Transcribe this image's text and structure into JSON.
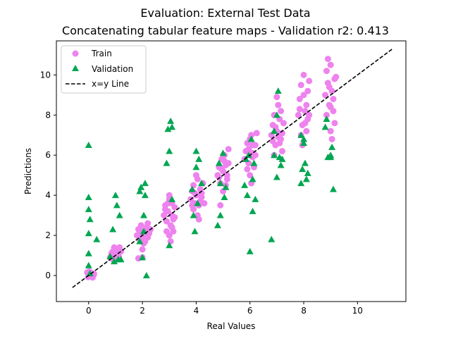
{
  "chart_data": {
    "type": "scatter",
    "title": "Evaluation: External Test Data",
    "subtitle": "Concatenating tabular feature maps - Validation r2: 0.413",
    "xlabel": "Real Values",
    "ylabel": "Predictions",
    "xlim": [
      -1.2,
      11.8
    ],
    "ylim": [
      -1.3,
      11.7
    ],
    "xticks": [
      0,
      2,
      4,
      6,
      8,
      10
    ],
    "yticks": [
      0,
      2,
      4,
      6,
      8,
      10
    ],
    "grid": false,
    "legend_position": "top-left",
    "series": [
      {
        "name": "Train",
        "marker": "circle",
        "color": "#ee82ee",
        "points": [
          [
            0.0,
            0.0
          ],
          [
            0.05,
            0.1
          ],
          [
            0.1,
            -0.05
          ],
          [
            -0.05,
            0.15
          ],
          [
            0.02,
            0.2
          ],
          [
            0.08,
            0.05
          ],
          [
            0.12,
            0.12
          ],
          [
            0.15,
            -0.1
          ],
          [
            0.18,
            0.0
          ],
          [
            0.2,
            0.08
          ],
          [
            -0.02,
            -0.08
          ],
          [
            0.03,
            0.05
          ],
          [
            0.8,
            0.9
          ],
          [
            0.85,
            1.1
          ],
          [
            0.9,
            1.2
          ],
          [
            0.95,
            1.0
          ],
          [
            1.0,
            1.3
          ],
          [
            1.05,
            1.1
          ],
          [
            0.9,
            0.8
          ],
          [
            1.0,
            0.9
          ],
          [
            1.1,
            1.0
          ],
          [
            1.15,
            1.4
          ],
          [
            1.2,
            1.2
          ],
          [
            0.95,
            1.4
          ],
          [
            1.05,
            0.8
          ],
          [
            0.88,
            1.15
          ],
          [
            1.12,
            0.95
          ],
          [
            1.8,
            2.0
          ],
          [
            1.85,
            2.3
          ],
          [
            1.9,
            1.8
          ],
          [
            1.95,
            2.5
          ],
          [
            2.0,
            2.2
          ],
          [
            2.05,
            2.0
          ],
          [
            2.1,
            1.7
          ],
          [
            2.15,
            2.4
          ],
          [
            2.2,
            2.6
          ],
          [
            2.25,
            2.1
          ],
          [
            2.0,
            1.3
          ],
          [
            2.05,
            1.6
          ],
          [
            1.9,
            2.1
          ],
          [
            2.1,
            2.2
          ],
          [
            1.95,
            1.9
          ],
          [
            2.2,
            1.9
          ],
          [
            2.3,
            2.3
          ],
          [
            2.0,
            0.9
          ],
          [
            1.85,
            0.85
          ],
          [
            2.8,
            3.0
          ],
          [
            2.85,
            3.5
          ],
          [
            2.9,
            2.7
          ],
          [
            2.95,
            3.2
          ],
          [
            3.0,
            3.8
          ],
          [
            3.05,
            2.5
          ],
          [
            3.1,
            3.0
          ],
          [
            3.15,
            2.8
          ],
          [
            3.2,
            3.4
          ],
          [
            2.9,
            2.2
          ],
          [
            3.0,
            2.0
          ],
          [
            3.05,
            1.7
          ],
          [
            3.1,
            2.4
          ],
          [
            2.95,
            3.6
          ],
          [
            3.0,
            4.0
          ],
          [
            3.1,
            3.6
          ],
          [
            2.85,
            3.3
          ],
          [
            3.2,
            2.9
          ],
          [
            3.15,
            2.2
          ],
          [
            3.8,
            3.8
          ],
          [
            3.85,
            4.2
          ],
          [
            3.9,
            4.5
          ],
          [
            3.95,
            3.6
          ],
          [
            4.0,
            4.0
          ],
          [
            4.05,
            3.0
          ],
          [
            4.1,
            2.8
          ],
          [
            4.15,
            4.3
          ],
          [
            4.2,
            3.9
          ],
          [
            4.25,
            4.6
          ],
          [
            4.0,
            5.0
          ],
          [
            4.05,
            4.8
          ],
          [
            3.9,
            3.3
          ],
          [
            4.1,
            3.5
          ],
          [
            3.95,
            4.1
          ],
          [
            4.15,
            3.7
          ],
          [
            4.2,
            4.1
          ],
          [
            4.3,
            3.6
          ],
          [
            3.85,
            3.5
          ],
          [
            4.8,
            5.0
          ],
          [
            4.85,
            5.4
          ],
          [
            4.9,
            4.6
          ],
          [
            4.95,
            5.8
          ],
          [
            5.0,
            5.2
          ],
          [
            5.05,
            6.0
          ],
          [
            5.1,
            5.5
          ],
          [
            5.15,
            4.8
          ],
          [
            5.2,
            6.3
          ],
          [
            4.9,
            3.5
          ],
          [
            5.0,
            4.2
          ],
          [
            5.1,
            4.5
          ],
          [
            5.15,
            5.0
          ],
          [
            4.95,
            5.3
          ],
          [
            5.05,
            5.7
          ],
          [
            5.2,
            5.6
          ],
          [
            4.85,
            4.9
          ],
          [
            5.8,
            5.8
          ],
          [
            5.85,
            6.2
          ],
          [
            5.9,
            6.6
          ],
          [
            5.95,
            5.6
          ],
          [
            6.0,
            5.0
          ],
          [
            6.05,
            7.0
          ],
          [
            6.1,
            6.5
          ],
          [
            6.15,
            5.4
          ],
          [
            6.2,
            6.0
          ],
          [
            6.25,
            7.1
          ],
          [
            6.0,
            6.8
          ],
          [
            6.1,
            5.9
          ],
          [
            5.95,
            6.3
          ],
          [
            6.05,
            4.6
          ],
          [
            6.2,
            6.5
          ],
          [
            5.9,
            5.3
          ],
          [
            6.1,
            6.1
          ],
          [
            6.8,
            7.0
          ],
          [
            6.85,
            7.5
          ],
          [
            6.9,
            8.0
          ],
          [
            6.95,
            6.5
          ],
          [
            7.0,
            7.2
          ],
          [
            7.05,
            8.5
          ],
          [
            7.1,
            7.8
          ],
          [
            7.15,
            6.8
          ],
          [
            7.2,
            6.2
          ],
          [
            7.25,
            7.6
          ],
          [
            6.9,
            6.0
          ],
          [
            7.0,
            8.9
          ],
          [
            7.1,
            6.6
          ],
          [
            6.95,
            7.4
          ],
          [
            7.05,
            6.9
          ],
          [
            7.2,
            7.1
          ],
          [
            6.85,
            6.7
          ],
          [
            7.15,
            8.2
          ],
          [
            7.8,
            8.0
          ],
          [
            7.85,
            8.8
          ],
          [
            7.9,
            9.5
          ],
          [
            7.95,
            7.5
          ],
          [
            8.0,
            9.0
          ],
          [
            8.05,
            8.2
          ],
          [
            8.1,
            8.5
          ],
          [
            8.15,
            7.8
          ],
          [
            8.2,
            9.7
          ],
          [
            7.9,
            7.0
          ],
          [
            8.0,
            10.0
          ],
          [
            8.1,
            7.2
          ],
          [
            7.95,
            6.5
          ],
          [
            8.05,
            7.6
          ],
          [
            8.15,
            9.2
          ],
          [
            7.85,
            8.3
          ],
          [
            8.2,
            8.0
          ],
          [
            8.8,
            9.0
          ],
          [
            8.85,
            10.2
          ],
          [
            8.9,
            9.6
          ],
          [
            8.95,
            8.5
          ],
          [
            9.0,
            10.5
          ],
          [
            9.05,
            9.2
          ],
          [
            9.1,
            8.2
          ],
          [
            9.15,
            7.6
          ],
          [
            9.2,
            9.9
          ],
          [
            8.9,
            10.8
          ],
          [
            9.0,
            7.2
          ],
          [
            9.1,
            8.8
          ],
          [
            8.95,
            9.4
          ],
          [
            9.05,
            6.8
          ],
          [
            9.15,
            9.8
          ],
          [
            8.85,
            8.0
          ],
          [
            9.0,
            8.4
          ]
        ]
      },
      {
        "name": "Validation",
        "marker": "triangle",
        "color": "#00a651",
        "points": [
          [
            0.0,
            6.5
          ],
          [
            0.0,
            3.9
          ],
          [
            0.0,
            3.3
          ],
          [
            0.05,
            2.8
          ],
          [
            0.0,
            2.1
          ],
          [
            0.0,
            1.1
          ],
          [
            0.0,
            0.5
          ],
          [
            0.05,
            0.1
          ],
          [
            0.3,
            1.8
          ],
          [
            0.8,
            0.95
          ],
          [
            0.9,
            2.3
          ],
          [
            0.95,
            0.7
          ],
          [
            1.0,
            4.0
          ],
          [
            1.05,
            3.5
          ],
          [
            1.1,
            0.8
          ],
          [
            1.2,
            0.8
          ],
          [
            1.15,
            3.0
          ],
          [
            1.9,
            1.7
          ],
          [
            1.9,
            4.2
          ],
          [
            1.95,
            4.4
          ],
          [
            2.0,
            0.9
          ],
          [
            2.05,
            2.2
          ],
          [
            2.05,
            3.0
          ],
          [
            2.1,
            4.6
          ],
          [
            2.1,
            4.0
          ],
          [
            2.15,
            0.0
          ],
          [
            2.9,
            5.6
          ],
          [
            2.95,
            7.3
          ],
          [
            3.0,
            6.2
          ],
          [
            3.05,
            7.7
          ],
          [
            3.1,
            7.4
          ],
          [
            3.1,
            3.8
          ],
          [
            3.0,
            1.5
          ],
          [
            3.85,
            4.3
          ],
          [
            3.9,
            3.0
          ],
          [
            3.95,
            2.2
          ],
          [
            4.0,
            5.4
          ],
          [
            4.0,
            6.2
          ],
          [
            4.05,
            3.6
          ],
          [
            4.1,
            5.8
          ],
          [
            4.2,
            4.6
          ],
          [
            4.8,
            2.5
          ],
          [
            4.85,
            5.6
          ],
          [
            4.9,
            3.0
          ],
          [
            4.9,
            4.6
          ],
          [
            5.0,
            6.1
          ],
          [
            5.05,
            3.9
          ],
          [
            5.1,
            4.4
          ],
          [
            5.8,
            4.5
          ],
          [
            5.85,
            5.8
          ],
          [
            5.9,
            4.0
          ],
          [
            5.95,
            6.0
          ],
          [
            6.0,
            1.2
          ],
          [
            6.05,
            6.8
          ],
          [
            6.1,
            3.2
          ],
          [
            6.15,
            5.6
          ],
          [
            6.2,
            3.8
          ],
          [
            6.1,
            4.8
          ],
          [
            6.8,
            1.8
          ],
          [
            6.9,
            6.0
          ],
          [
            7.0,
            4.9
          ],
          [
            7.0,
            8.0
          ],
          [
            7.05,
            9.2
          ],
          [
            7.1,
            5.9
          ],
          [
            7.15,
            5.5
          ],
          [
            7.2,
            5.8
          ],
          [
            6.9,
            7.2
          ],
          [
            7.9,
            4.6
          ],
          [
            7.95,
            5.3
          ],
          [
            8.0,
            6.8
          ],
          [
            8.05,
            5.6
          ],
          [
            8.1,
            4.8
          ],
          [
            8.15,
            5.1
          ],
          [
            7.9,
            7.0
          ],
          [
            8.0,
            6.6
          ],
          [
            8.8,
            7.4
          ],
          [
            8.85,
            7.8
          ],
          [
            8.9,
            5.9
          ],
          [
            9.0,
            5.9
          ],
          [
            9.05,
            6.4
          ],
          [
            9.1,
            4.3
          ],
          [
            9.0,
            6.0
          ]
        ]
      }
    ],
    "reference_line": {
      "name": "x=y Line",
      "color": "#000000",
      "style": "dashed",
      "x": [
        -0.6,
        11.3
      ],
      "y": [
        -0.6,
        11.3
      ]
    }
  }
}
